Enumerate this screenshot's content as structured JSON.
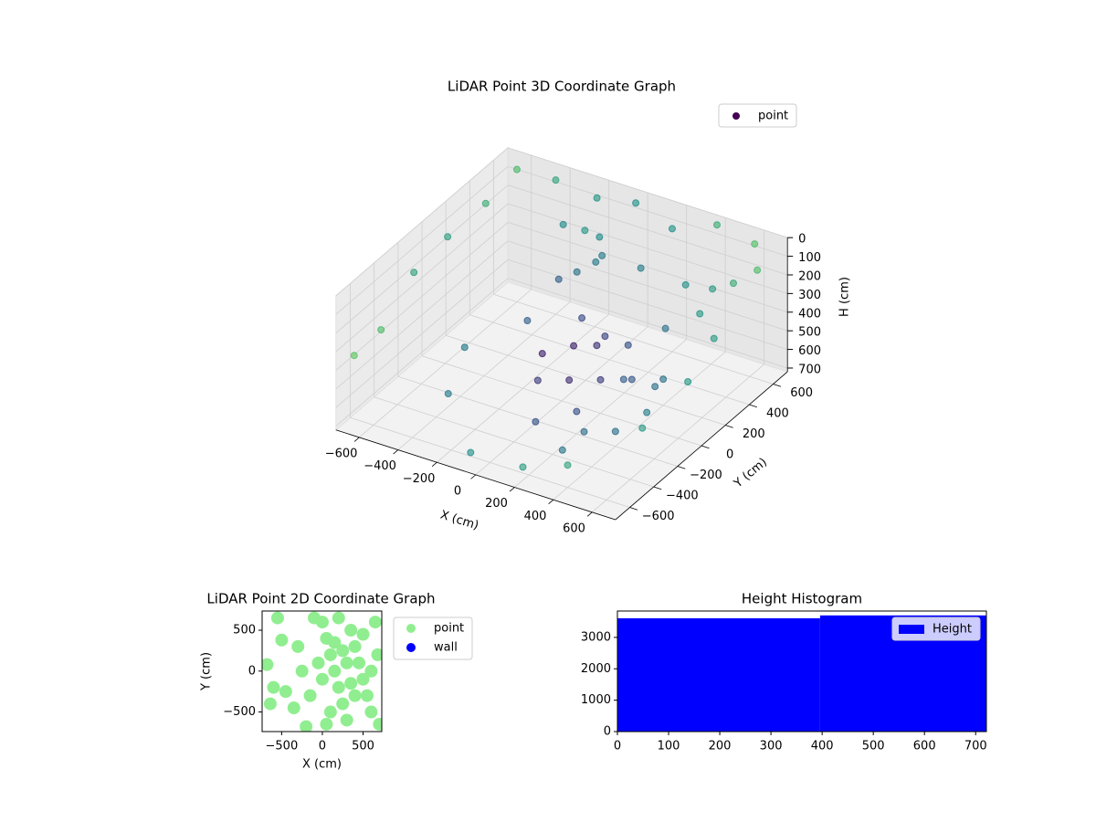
{
  "chart_data": [
    {
      "type": "scatter3d",
      "title": "LiDAR Point 3D Coordinate Graph",
      "xlabel": "X (cm)",
      "ylabel": "Y (cm)",
      "zlabel": "H (cm)",
      "xlim": [
        -720,
        720
      ],
      "ylim": [
        -720,
        720
      ],
      "zlim": [
        0,
        720
      ],
      "z_inverted": true,
      "xticks": [
        -600,
        -400,
        -200,
        0,
        200,
        400,
        600
      ],
      "yticks": [
        -600,
        -400,
        -200,
        0,
        200,
        400,
        600
      ],
      "zticks": [
        0,
        100,
        200,
        300,
        400,
        500,
        600,
        700
      ],
      "colormap": "viridis",
      "legend": "upper right",
      "series": [
        {
          "name": "point",
          "color": "#440154",
          "x": [
            -600,
            -400,
            -200,
            0,
            200,
            400,
            600,
            700,
            700,
            650,
            -650,
            -680,
            -700,
            -700,
            -500,
            -300,
            -200,
            -100,
            -150,
            -250,
            -120,
            -180,
            100,
            300,
            500,
            600,
            650,
            600,
            400,
            200,
            -100,
            -400,
            -500,
            -300,
            0,
            100,
            200,
            300,
            400,
            100,
            200,
            300,
            0,
            -100,
            150,
            250,
            350,
            50,
            250,
            400,
            450,
            -50,
            350,
            500
          ],
          "y": [
            600,
            600,
            620,
            620,
            600,
            650,
            640,
            500,
            300,
            100,
            420,
            150,
            -100,
            -600,
            -700,
            500,
            300,
            500,
            560,
            600,
            480,
            420,
            500,
            550,
            450,
            300,
            0,
            -300,
            -600,
            -650,
            -600,
            -300,
            0,
            200,
            -200,
            -100,
            0,
            100,
            200,
            200,
            -200,
            -300,
            100,
            0,
            50,
            150,
            -50,
            -300,
            -400,
            -200,
            50,
            250,
            300,
            -100
          ],
          "z": [
            10,
            0,
            40,
            0,
            60,
            0,
            30,
            60,
            20,
            90,
            110,
            150,
            210,
            380,
            120,
            150,
            300,
            250,
            200,
            220,
            280,
            320,
            250,
            300,
            200,
            350,
            400,
            500,
            600,
            650,
            700,
            650,
            600,
            500,
            500,
            520,
            540,
            560,
            580,
            450,
            600,
            620,
            480,
            500,
            400,
            420,
            460,
            650,
            680,
            640,
            520,
            430,
            380,
            560
          ]
        }
      ]
    },
    {
      "type": "scatter",
      "title": "LiDAR Point 2D Coordinate Graph",
      "xlabel": "X (cm)",
      "ylabel": "Y (cm)",
      "xlim": [
        -740,
        730
      ],
      "ylim": [
        -740,
        735
      ],
      "xticks": [
        -500,
        0,
        500
      ],
      "yticks": [
        -500,
        0,
        500
      ],
      "legend": "outside right",
      "series": [
        {
          "name": "point",
          "color": "#90ee90",
          "x": [
            -680,
            -600,
            -640,
            -550,
            -500,
            -450,
            -300,
            -350,
            -200,
            -100,
            0,
            50,
            100,
            150,
            200,
            250,
            300,
            350,
            400,
            450,
            500,
            550,
            600,
            650,
            680,
            700,
            0,
            -50,
            100,
            200,
            300,
            400,
            500,
            600,
            -150,
            -250,
            50,
            150,
            250,
            350
          ],
          "y": [
            80,
            -200,
            -400,
            650,
            380,
            -250,
            300,
            -450,
            -680,
            650,
            600,
            400,
            200,
            0,
            -200,
            -400,
            -600,
            500,
            300,
            100,
            -100,
            -300,
            -500,
            600,
            200,
            -650,
            -100,
            100,
            -500,
            650,
            100,
            -300,
            450,
            0,
            -300,
            0,
            -650,
            350,
            250,
            -150
          ]
        },
        {
          "name": "wall",
          "color": "#0000ff",
          "x": [],
          "y": []
        }
      ]
    },
    {
      "type": "histogram",
      "title": "Height Histogram",
      "bins": [
        0,
        396,
        720
      ],
      "counts": [
        3610,
        3700
      ],
      "color": "#0000ff",
      "label": "Height",
      "xlim": [
        0,
        721
      ],
      "ylim": [
        0,
        3840
      ],
      "xticks": [
        0,
        100,
        200,
        300,
        400,
        500,
        600,
        700
      ],
      "yticks": [
        0,
        1000,
        2000,
        3000
      ],
      "legend": "upper right"
    }
  ]
}
